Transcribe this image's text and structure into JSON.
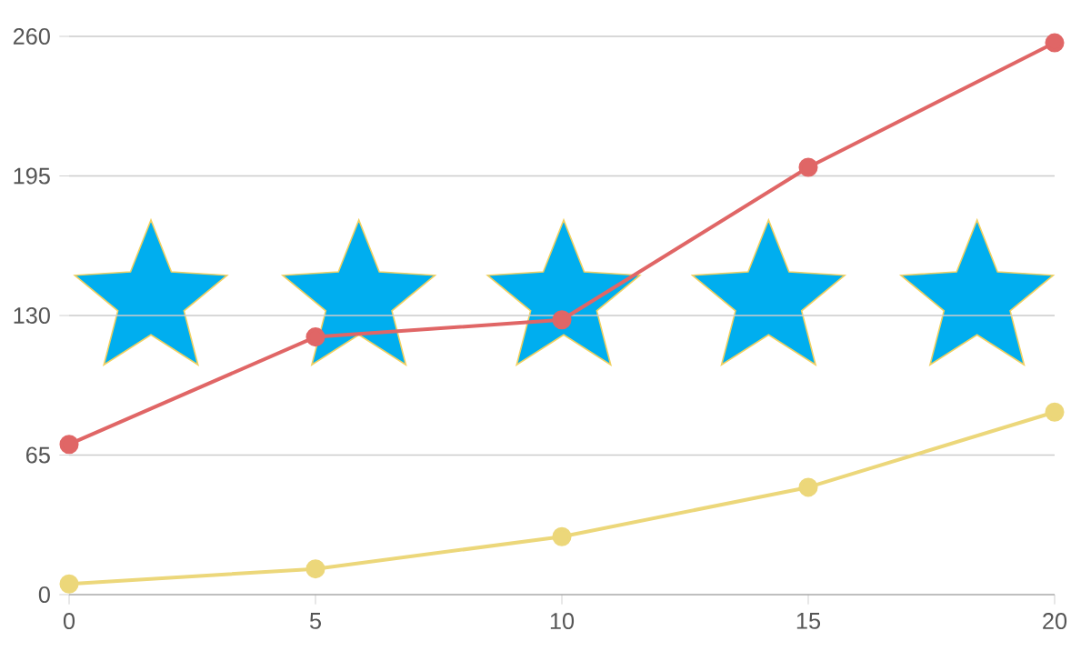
{
  "chart_data": {
    "type": "line",
    "x": [
      0,
      5,
      10,
      15,
      20
    ],
    "series": [
      {
        "color": "#e06666",
        "values": [
          70,
          120,
          128,
          199,
          257
        ]
      },
      {
        "color": "#ecd77a",
        "values": [
          5,
          12,
          27,
          50,
          85
        ]
      }
    ],
    "xlim": [
      0,
      20
    ],
    "ylim": [
      0,
      260
    ],
    "xticks": [
      0,
      5,
      10,
      15,
      20
    ],
    "yticks": [
      0,
      65,
      130,
      195,
      260
    ],
    "grid": "y",
    "marker": "circle",
    "line_style": "solid"
  }
}
